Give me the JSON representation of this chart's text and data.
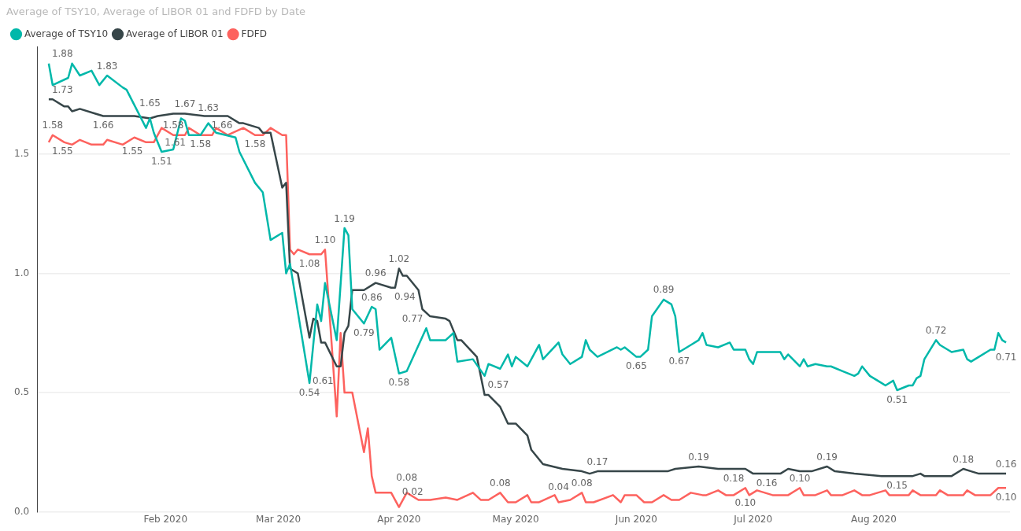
{
  "chart_data": {
    "type": "line",
    "title": "Average of TSY10, Average of LIBOR 01 and FDFD by Date",
    "legend": "top left",
    "grid": "y",
    "marker": "none",
    "line_style": "solid",
    "xlim": [
      "2019-12-30",
      "2020-09-05"
    ],
    "xticks": [
      {
        "value": "2020-02-01",
        "label": "Feb 2020"
      },
      {
        "value": "2020-03-01",
        "label": "Mar 2020"
      },
      {
        "value": "2020-04-01",
        "label": "Apr 2020"
      },
      {
        "value": "2020-05-01",
        "label": "May 2020"
      },
      {
        "value": "2020-06-01",
        "label": "Jun 2020"
      },
      {
        "value": "2020-07-01",
        "label": "Jul 2020"
      },
      {
        "value": "2020-08-01",
        "label": "Aug 2020"
      }
    ],
    "ylim": [
      0,
      1.95
    ],
    "yticks": [
      {
        "value": 0,
        "label": "0.0"
      },
      0.5,
      {
        "value": 1,
        "label": "1.0"
      },
      1.5
    ],
    "series": [
      {
        "name": "Average of TSY10",
        "color": "#01b8aa",
        "x": [
          "2020-01-02",
          "2020-01-03",
          "2020-01-07",
          "2020-01-08",
          "2020-01-10",
          "2020-01-13",
          "2020-01-15",
          "2020-01-17",
          "2020-01-21",
          "2020-01-22",
          "2020-01-27",
          "2020-01-28",
          "2020-01-29",
          "2020-01-31",
          "2020-02-03",
          "2020-02-05",
          "2020-02-06",
          "2020-02-07",
          "2020-02-10",
          "2020-02-12",
          "2020-02-14",
          "2020-02-19",
          "2020-02-20",
          "2020-02-24",
          "2020-02-26",
          "2020-02-28",
          "2020-03-02",
          "2020-03-03",
          "2020-03-04",
          "2020-03-09",
          "2020-03-11",
          "2020-03-12",
          "2020-03-13",
          "2020-03-16",
          "2020-03-18",
          "2020-03-19",
          "2020-03-20",
          "2020-03-23",
          "2020-03-25",
          "2020-03-26",
          "2020-03-27",
          "2020-03-30",
          "2020-04-01",
          "2020-04-03",
          "2020-04-08",
          "2020-04-09",
          "2020-04-13",
          "2020-04-15",
          "2020-04-16",
          "2020-04-20",
          "2020-04-23",
          "2020-04-24",
          "2020-04-27",
          "2020-04-29",
          "2020-04-30",
          "2020-05-01",
          "2020-05-04",
          "2020-05-05",
          "2020-05-07",
          "2020-05-08",
          "2020-05-12",
          "2020-05-13",
          "2020-05-15",
          "2020-05-18",
          "2020-05-19",
          "2020-05-20",
          "2020-05-22",
          "2020-05-27",
          "2020-05-28",
          "2020-05-29",
          "2020-06-01",
          "2020-06-02",
          "2020-06-04",
          "2020-06-05",
          "2020-06-08",
          "2020-06-10",
          "2020-06-11",
          "2020-06-12",
          "2020-06-15",
          "2020-06-17",
          "2020-06-18",
          "2020-06-19",
          "2020-06-22",
          "2020-06-25",
          "2020-06-26",
          "2020-06-29",
          "2020-06-30",
          "2020-07-01",
          "2020-07-02",
          "2020-07-08",
          "2020-07-09",
          "2020-07-10",
          "2020-07-13",
          "2020-07-14",
          "2020-07-15",
          "2020-07-17",
          "2020-07-20",
          "2020-07-21",
          "2020-07-24",
          "2020-07-27",
          "2020-07-28",
          "2020-07-29",
          "2020-07-31",
          "2020-08-03",
          "2020-08-04",
          "2020-08-06",
          "2020-08-07",
          "2020-08-10",
          "2020-08-11",
          "2020-08-12",
          "2020-08-13",
          "2020-08-14",
          "2020-08-17",
          "2020-08-18",
          "2020-08-20",
          "2020-08-21",
          "2020-08-24",
          "2020-08-25",
          "2020-08-26",
          "2020-08-28",
          "2020-08-31",
          "2020-09-01",
          "2020-09-02",
          "2020-09-03",
          "2020-09-04"
        ],
        "values": [
          1.88,
          1.79,
          1.82,
          1.88,
          1.83,
          1.85,
          1.79,
          1.83,
          1.78,
          1.77,
          1.61,
          1.65,
          1.59,
          1.51,
          1.52,
          1.65,
          1.64,
          1.58,
          1.58,
          1.63,
          1.59,
          1.57,
          1.51,
          1.38,
          1.34,
          1.14,
          1.17,
          1.0,
          1.04,
          0.54,
          0.87,
          0.8,
          0.96,
          0.72,
          1.19,
          1.16,
          0.85,
          0.79,
          0.86,
          0.85,
          0.68,
          0.73,
          0.58,
          0.59,
          0.77,
          0.72,
          0.72,
          0.75,
          0.63,
          0.64,
          0.57,
          0.62,
          0.6,
          0.66,
          0.61,
          0.65,
          0.61,
          0.64,
          0.7,
          0.64,
          0.71,
          0.66,
          0.62,
          0.65,
          0.72,
          0.68,
          0.65,
          0.69,
          0.68,
          0.69,
          0.65,
          0.65,
          0.68,
          0.82,
          0.89,
          0.87,
          0.82,
          0.67,
          0.7,
          0.72,
          0.75,
          0.7,
          0.69,
          0.71,
          0.68,
          0.68,
          0.64,
          0.62,
          0.67,
          0.67,
          0.64,
          0.66,
          0.61,
          0.64,
          0.61,
          0.62,
          0.61,
          0.61,
          0.59,
          0.57,
          0.58,
          0.61,
          0.57,
          0.54,
          0.53,
          0.55,
          0.51,
          0.53,
          0.53,
          0.56,
          0.57,
          0.64,
          0.72,
          0.7,
          0.68,
          0.67,
          0.68,
          0.64,
          0.63,
          0.65,
          0.68,
          0.68,
          0.75,
          0.72,
          0.71
        ],
        "value_labels": [
          "1.88",
          null,
          null,
          null,
          null,
          null,
          null,
          "1.83",
          null,
          null,
          null,
          "1.65",
          null,
          "1.51",
          null,
          null,
          null,
          null,
          "1.58",
          "1.63",
          null,
          null,
          null,
          null,
          null,
          null,
          null,
          null,
          null,
          "0.54",
          null,
          null,
          null,
          null,
          "1.19",
          null,
          null,
          "0.79",
          "0.86",
          null,
          null,
          null,
          "0.58",
          null,
          "0.77",
          null,
          null,
          null,
          null,
          null,
          "0.57",
          null,
          null,
          null,
          null,
          null,
          null,
          null,
          null,
          null,
          null,
          null,
          null,
          null,
          null,
          null,
          null,
          null,
          null,
          null,
          "0.65",
          null,
          null,
          null,
          "0.89",
          null,
          null,
          "0.67",
          null,
          null,
          null,
          null,
          null,
          null,
          null,
          null,
          null,
          null,
          null,
          null,
          null,
          null,
          null,
          null,
          null,
          null,
          null,
          null,
          null,
          null,
          null,
          null,
          null,
          null,
          null,
          null,
          "0.51",
          null,
          null,
          null,
          null,
          null,
          "0.72",
          null,
          null,
          null,
          null,
          null,
          null,
          null,
          null,
          null,
          null,
          null,
          "0.71"
        ]
      },
      {
        "name": "Average of LIBOR 01",
        "color": "#374649",
        "x": [
          "2020-01-02",
          "2020-01-03",
          "2020-01-06",
          "2020-01-07",
          "2020-01-08",
          "2020-01-10",
          "2020-01-14",
          "2020-01-16",
          "2020-01-24",
          "2020-01-28",
          "2020-01-30",
          "2020-02-03",
          "2020-02-06",
          "2020-02-11",
          "2020-02-12",
          "2020-02-17",
          "2020-02-20",
          "2020-02-21",
          "2020-02-25",
          "2020-02-26",
          "2020-02-28",
          "2020-03-02",
          "2020-03-03",
          "2020-03-04",
          "2020-03-06",
          "2020-03-09",
          "2020-03-10",
          "2020-03-11",
          "2020-03-12",
          "2020-03-13",
          "2020-03-16",
          "2020-03-17",
          "2020-03-18",
          "2020-03-19",
          "2020-03-20",
          "2020-03-23",
          "2020-03-25",
          "2020-03-26",
          "2020-03-30",
          "2020-03-31",
          "2020-04-01",
          "2020-04-02",
          "2020-04-03",
          "2020-04-06",
          "2020-04-07",
          "2020-04-09",
          "2020-04-13",
          "2020-04-14",
          "2020-04-16",
          "2020-04-17",
          "2020-04-21",
          "2020-04-23",
          "2020-04-24",
          "2020-04-27",
          "2020-04-29",
          "2020-05-01",
          "2020-05-04",
          "2020-05-05",
          "2020-05-08",
          "2020-05-13",
          "2020-05-18",
          "2020-05-20",
          "2020-05-22",
          "2020-05-28",
          "2020-06-02",
          "2020-06-09",
          "2020-06-11",
          "2020-06-17",
          "2020-06-22",
          "2020-06-26",
          "2020-06-29",
          "2020-07-01",
          "2020-07-02",
          "2020-07-08",
          "2020-07-10",
          "2020-07-13",
          "2020-07-16",
          "2020-07-20",
          "2020-07-22",
          "2020-07-27",
          "2020-08-03",
          "2020-08-06",
          "2020-08-07",
          "2020-08-11",
          "2020-08-13",
          "2020-08-14",
          "2020-08-21",
          "2020-08-24",
          "2020-08-26",
          "2020-08-28",
          "2020-08-31",
          "2020-09-04"
        ],
        "values": [
          1.73,
          1.73,
          1.7,
          1.7,
          1.68,
          1.69,
          1.67,
          1.66,
          1.66,
          1.65,
          1.66,
          1.67,
          1.67,
          1.66,
          1.66,
          1.66,
          1.63,
          1.63,
          1.61,
          1.59,
          1.59,
          1.36,
          1.38,
          1.02,
          1.0,
          0.73,
          0.81,
          0.8,
          0.71,
          0.71,
          0.61,
          0.61,
          0.75,
          0.78,
          0.93,
          0.93,
          0.95,
          0.96,
          0.94,
          0.94,
          1.02,
          0.99,
          0.99,
          0.93,
          0.85,
          0.82,
          0.81,
          0.8,
          0.72,
          0.72,
          0.65,
          0.49,
          0.49,
          0.44,
          0.37,
          0.37,
          0.32,
          0.26,
          0.2,
          0.18,
          0.17,
          0.16,
          0.17,
          0.17,
          0.17,
          0.17,
          0.18,
          0.19,
          0.18,
          0.18,
          0.18,
          0.16,
          0.16,
          0.16,
          0.18,
          0.17,
          0.17,
          0.19,
          0.17,
          0.16,
          0.15,
          0.15,
          0.15,
          0.15,
          0.16,
          0.15,
          0.15,
          0.18,
          0.17,
          0.16,
          0.16,
          0.16
        ],
        "value_labels": [
          "1.73",
          null,
          null,
          null,
          null,
          null,
          null,
          "1.66",
          null,
          null,
          null,
          null,
          "1.67",
          null,
          "1.66",
          null,
          null,
          null,
          null,
          null,
          null,
          null,
          null,
          null,
          null,
          null,
          null,
          null,
          null,
          null,
          "0.61",
          null,
          null,
          null,
          null,
          null,
          null,
          "0.96",
          "0.94",
          null,
          "1.02",
          null,
          null,
          null,
          null,
          null,
          null,
          null,
          null,
          null,
          null,
          null,
          null,
          null,
          null,
          null,
          null,
          null,
          null,
          null,
          null,
          null,
          "0.17",
          null,
          null,
          null,
          null,
          "0.19",
          null,
          "0.18",
          null,
          "0.16",
          null,
          null,
          null,
          null,
          null,
          "0.19",
          null,
          null,
          null,
          null,
          "0.15",
          null,
          null,
          null,
          null,
          "0.18",
          null,
          null,
          null,
          "0.16"
        ]
      },
      {
        "name": "FDFD",
        "color": "#fd625e",
        "x": [
          "2020-01-02",
          "2020-01-03",
          "2020-01-06",
          "2020-01-08",
          "2020-01-10",
          "2020-01-13",
          "2020-01-16",
          "2020-01-17",
          "2020-01-21",
          "2020-01-24",
          "2020-01-27",
          "2020-01-29",
          "2020-01-31",
          "2020-02-03",
          "2020-02-06",
          "2020-02-07",
          "2020-02-10",
          "2020-02-13",
          "2020-02-14",
          "2020-02-17",
          "2020-02-21",
          "2020-02-24",
          "2020-02-26",
          "2020-02-28",
          "2020-03-02",
          "2020-03-03",
          "2020-03-04",
          "2020-03-05",
          "2020-03-06",
          "2020-03-09",
          "2020-03-12",
          "2020-03-13",
          "2020-03-16",
          "2020-03-17",
          "2020-03-18",
          "2020-03-20",
          "2020-03-23",
          "2020-03-24",
          "2020-03-25",
          "2020-03-26",
          "2020-03-30",
          "2020-04-01",
          "2020-04-03",
          "2020-04-06",
          "2020-04-09",
          "2020-04-13",
          "2020-04-16",
          "2020-04-20",
          "2020-04-22",
          "2020-04-24",
          "2020-04-27",
          "2020-04-29",
          "2020-05-01",
          "2020-05-04",
          "2020-05-05",
          "2020-05-07",
          "2020-05-11",
          "2020-05-12",
          "2020-05-15",
          "2020-05-18",
          "2020-05-19",
          "2020-05-21",
          "2020-05-26",
          "2020-05-28",
          "2020-05-29",
          "2020-06-01",
          "2020-06-03",
          "2020-06-05",
          "2020-06-08",
          "2020-06-10",
          "2020-06-12",
          "2020-06-15",
          "2020-06-18",
          "2020-06-19",
          "2020-06-22",
          "2020-06-24",
          "2020-06-26",
          "2020-06-29",
          "2020-06-30",
          "2020-07-02",
          "2020-07-06",
          "2020-07-10",
          "2020-07-13",
          "2020-07-14",
          "2020-07-17",
          "2020-07-20",
          "2020-07-21",
          "2020-07-24",
          "2020-07-27",
          "2020-07-29",
          "2020-07-31",
          "2020-08-04",
          "2020-08-05",
          "2020-08-10",
          "2020-08-11",
          "2020-08-13",
          "2020-08-17",
          "2020-08-18",
          "2020-08-20",
          "2020-08-24",
          "2020-08-25",
          "2020-08-27",
          "2020-08-31",
          "2020-09-02",
          "2020-09-04"
        ],
        "values": [
          1.55,
          1.58,
          1.55,
          1.54,
          1.56,
          1.54,
          1.54,
          1.56,
          1.54,
          1.57,
          1.55,
          1.55,
          1.61,
          1.58,
          1.58,
          1.61,
          1.58,
          1.58,
          1.61,
          1.58,
          1.61,
          1.58,
          1.58,
          1.61,
          1.58,
          1.58,
          1.1,
          1.08,
          1.1,
          1.08,
          1.08,
          1.1,
          0.4,
          0.75,
          0.5,
          0.5,
          0.25,
          0.35,
          0.15,
          0.08,
          0.08,
          0.02,
          0.08,
          0.05,
          0.05,
          0.06,
          0.05,
          0.08,
          0.05,
          0.05,
          0.08,
          0.04,
          0.04,
          0.07,
          0.04,
          0.04,
          0.07,
          0.04,
          0.05,
          0.08,
          0.04,
          0.04,
          0.07,
          0.04,
          0.07,
          0.07,
          0.04,
          0.04,
          0.07,
          0.05,
          0.05,
          0.08,
          0.07,
          0.07,
          0.09,
          0.07,
          0.07,
          0.1,
          0.07,
          0.09,
          0.07,
          0.07,
          0.1,
          0.07,
          0.07,
          0.09,
          0.07,
          0.07,
          0.09,
          0.07,
          0.07,
          0.09,
          0.07,
          0.07,
          0.09,
          0.07,
          0.07,
          0.09,
          0.07,
          0.07,
          0.09,
          0.07,
          0.07,
          0.1,
          0.1
        ],
        "value_labels": [
          "1.55",
          "1.58",
          null,
          null,
          null,
          null,
          null,
          null,
          null,
          null,
          "1.55",
          null,
          "1.61",
          "1.58",
          null,
          null,
          null,
          null,
          null,
          null,
          null,
          "1.58",
          null,
          null,
          null,
          null,
          null,
          null,
          null,
          "1.08",
          null,
          "1.10",
          null,
          null,
          null,
          null,
          null,
          null,
          null,
          null,
          null,
          "0.02",
          "0.08",
          null,
          null,
          null,
          null,
          null,
          null,
          null,
          "0.08",
          null,
          null,
          null,
          null,
          null,
          null,
          "0.04",
          null,
          "0.08",
          null,
          null,
          null,
          null,
          null,
          null,
          null,
          null,
          null,
          null,
          null,
          null,
          null,
          null,
          null,
          null,
          null,
          "0.10",
          null,
          null,
          null,
          null,
          "0.10",
          null,
          null,
          null,
          null,
          null,
          null,
          null,
          null,
          null,
          null,
          null,
          null,
          null,
          null,
          null,
          null,
          null,
          null,
          null,
          null,
          null,
          "0.10"
        ]
      }
    ]
  }
}
